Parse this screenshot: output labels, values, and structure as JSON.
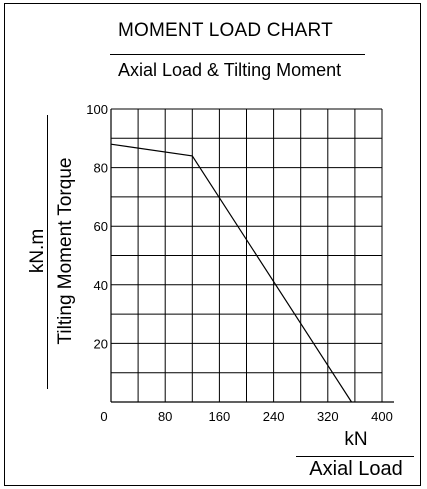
{
  "chart_data": {
    "type": "line",
    "title": "MOMENT LOAD CHART",
    "subtitle": "Axial Load & Tilting Moment",
    "ylabel_unit": "kN.m",
    "ylabel": "Tilting Moment Torque",
    "xlabel_unit": "kN",
    "xlabel": "Axial Load",
    "xlim": [
      0,
      400
    ],
    "ylim": [
      0,
      100
    ],
    "x_grid": [
      0,
      40,
      80,
      120,
      160,
      200,
      240,
      280,
      320,
      360,
      400
    ],
    "y_grid": [
      0,
      10,
      20,
      30,
      40,
      50,
      60,
      70,
      80,
      90,
      100
    ],
    "x_ticks": [
      "0",
      "80",
      "160",
      "240",
      "320",
      "400"
    ],
    "y_ticks": [
      "20",
      "40",
      "60",
      "80",
      "100"
    ],
    "grid": true,
    "series": [
      {
        "x": [
          0,
          120,
          355
        ],
        "y": [
          88,
          84,
          0
        ]
      }
    ]
  }
}
